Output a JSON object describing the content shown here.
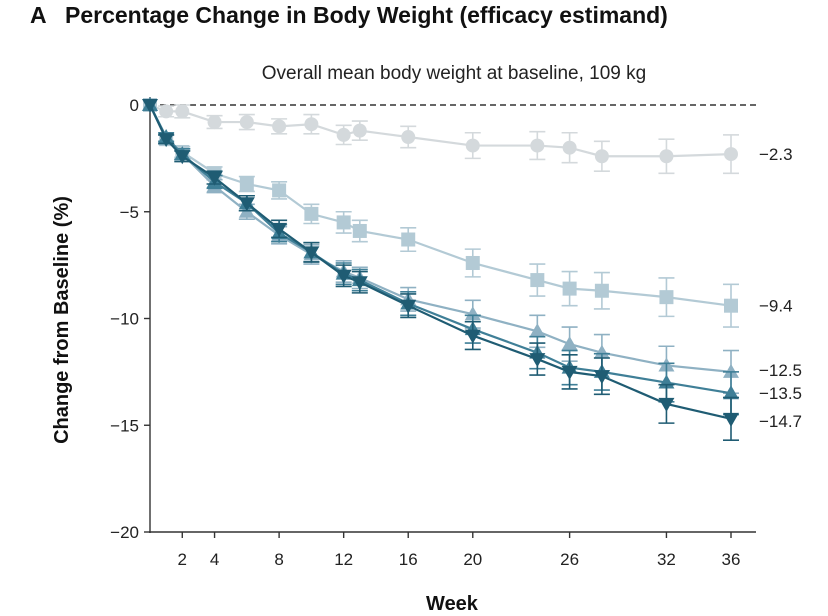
{
  "panel": {
    "letter": "A",
    "title": "Percentage Change in Body Weight (efficacy estimand)"
  },
  "chart_data": {
    "type": "line",
    "subtitle": "Overall mean body weight at baseline, 109 kg",
    "xlabel": "Week",
    "ylabel": "Change from Baseline (%)",
    "xlim": [
      0,
      36
    ],
    "ylim": [
      -20,
      0
    ],
    "x_ticks": [
      2,
      4,
      8,
      12,
      16,
      20,
      26,
      32,
      36
    ],
    "x_tick_labels": [
      "2",
      "4",
      "8",
      "12",
      "16",
      "20",
      "26",
      "32",
      "36"
    ],
    "y_ticks": [
      0,
      -5,
      -10,
      -15,
      -20
    ],
    "y_tick_labels": [
      "0",
      "−5",
      "−10",
      "−15",
      "−20"
    ],
    "reference_line": 0,
    "legend": "none",
    "series": [
      {
        "end_label": "−2.3",
        "marker": "circle",
        "color": "#d4d9dc",
        "points": [
          {
            "x": 0,
            "y": 0,
            "err": 0
          },
          {
            "x": 1,
            "y": -0.3,
            "err": 0.25
          },
          {
            "x": 2,
            "y": -0.3,
            "err": 0.3
          },
          {
            "x": 4,
            "y": -0.8,
            "err": 0.3
          },
          {
            "x": 6,
            "y": -0.8,
            "err": 0.35
          },
          {
            "x": 8,
            "y": -1.0,
            "err": 0.35
          },
          {
            "x": 10,
            "y": -0.9,
            "err": 0.45
          },
          {
            "x": 12,
            "y": -1.4,
            "err": 0.45
          },
          {
            "x": 13,
            "y": -1.2,
            "err": 0.45
          },
          {
            "x": 16,
            "y": -1.5,
            "err": 0.5
          },
          {
            "x": 20,
            "y": -1.9,
            "err": 0.6
          },
          {
            "x": 24,
            "y": -1.9,
            "err": 0.65
          },
          {
            "x": 26,
            "y": -2.0,
            "err": 0.7
          },
          {
            "x": 28,
            "y": -2.4,
            "err": 0.7
          },
          {
            "x": 32,
            "y": -2.4,
            "err": 0.8
          },
          {
            "x": 36,
            "y": -2.3,
            "err": 0.9
          }
        ]
      },
      {
        "end_label": "−9.4",
        "marker": "square",
        "color": "#b3cad5",
        "points": [
          {
            "x": 0,
            "y": 0,
            "err": 0
          },
          {
            "x": 1,
            "y": -1.6,
            "err": 0.2
          },
          {
            "x": 2,
            "y": -2.2,
            "err": 0.25
          },
          {
            "x": 4,
            "y": -3.2,
            "err": 0.3
          },
          {
            "x": 6,
            "y": -3.7,
            "err": 0.35
          },
          {
            "x": 8,
            "y": -4.0,
            "err": 0.4
          },
          {
            "x": 10,
            "y": -5.1,
            "err": 0.45
          },
          {
            "x": 12,
            "y": -5.5,
            "err": 0.5
          },
          {
            "x": 13,
            "y": -5.9,
            "err": 0.5
          },
          {
            "x": 16,
            "y": -6.3,
            "err": 0.55
          },
          {
            "x": 20,
            "y": -7.4,
            "err": 0.65
          },
          {
            "x": 24,
            "y": -8.2,
            "err": 0.75
          },
          {
            "x": 26,
            "y": -8.6,
            "err": 0.8
          },
          {
            "x": 28,
            "y": -8.7,
            "err": 0.85
          },
          {
            "x": 32,
            "y": -9.0,
            "err": 0.9
          },
          {
            "x": 36,
            "y": -9.4,
            "err": 1.0
          }
        ]
      },
      {
        "end_label": "−12.5",
        "marker": "triangle-up",
        "color": "#8fb1c3",
        "points": [
          {
            "x": 0,
            "y": 0,
            "err": 0
          },
          {
            "x": 1,
            "y": -1.6,
            "err": 0.2
          },
          {
            "x": 2,
            "y": -2.3,
            "err": 0.25
          },
          {
            "x": 4,
            "y": -3.8,
            "err": 0.3
          },
          {
            "x": 6,
            "y": -5.0,
            "err": 0.35
          },
          {
            "x": 8,
            "y": -6.1,
            "err": 0.4
          },
          {
            "x": 10,
            "y": -7.0,
            "err": 0.45
          },
          {
            "x": 12,
            "y": -7.8,
            "err": 0.5
          },
          {
            "x": 13,
            "y": -8.1,
            "err": 0.5
          },
          {
            "x": 16,
            "y": -9.1,
            "err": 0.55
          },
          {
            "x": 20,
            "y": -9.8,
            "err": 0.65
          },
          {
            "x": 24,
            "y": -10.6,
            "err": 0.75
          },
          {
            "x": 26,
            "y": -11.2,
            "err": 0.8
          },
          {
            "x": 28,
            "y": -11.6,
            "err": 0.85
          },
          {
            "x": 32,
            "y": -12.2,
            "err": 0.9
          },
          {
            "x": 36,
            "y": -12.5,
            "err": 1.0
          }
        ]
      },
      {
        "end_label": "−13.5",
        "marker": "triangle-up",
        "color": "#3f7f97",
        "points": [
          {
            "x": 0,
            "y": 0,
            "err": 0
          },
          {
            "x": 1,
            "y": -1.5,
            "err": 0.2
          },
          {
            "x": 2,
            "y": -2.3,
            "err": 0.25
          },
          {
            "x": 4,
            "y": -3.6,
            "err": 0.3
          },
          {
            "x": 6,
            "y": -4.6,
            "err": 0.35
          },
          {
            "x": 8,
            "y": -6.0,
            "err": 0.4
          },
          {
            "x": 10,
            "y": -6.9,
            "err": 0.45
          },
          {
            "x": 12,
            "y": -7.9,
            "err": 0.5
          },
          {
            "x": 13,
            "y": -8.2,
            "err": 0.5
          },
          {
            "x": 16,
            "y": -9.3,
            "err": 0.55
          },
          {
            "x": 20,
            "y": -10.5,
            "err": 0.65
          },
          {
            "x": 24,
            "y": -11.6,
            "err": 0.75
          },
          {
            "x": 26,
            "y": -12.3,
            "err": 0.8
          },
          {
            "x": 28,
            "y": -12.5,
            "err": 0.85
          },
          {
            "x": 32,
            "y": -13.0,
            "err": 0.9
          },
          {
            "x": 36,
            "y": -13.5,
            "err": 1.0
          }
        ]
      },
      {
        "end_label": "−14.7",
        "marker": "triangle-down",
        "color": "#1f5c73",
        "points": [
          {
            "x": 0,
            "y": 0,
            "err": 0
          },
          {
            "x": 1,
            "y": -1.6,
            "err": 0.2
          },
          {
            "x": 2,
            "y": -2.4,
            "err": 0.25
          },
          {
            "x": 4,
            "y": -3.4,
            "err": 0.3
          },
          {
            "x": 6,
            "y": -4.6,
            "err": 0.35
          },
          {
            "x": 8,
            "y": -5.8,
            "err": 0.4
          },
          {
            "x": 10,
            "y": -6.9,
            "err": 0.45
          },
          {
            "x": 12,
            "y": -8.0,
            "err": 0.5
          },
          {
            "x": 13,
            "y": -8.3,
            "err": 0.5
          },
          {
            "x": 16,
            "y": -9.4,
            "err": 0.55
          },
          {
            "x": 20,
            "y": -10.8,
            "err": 0.65
          },
          {
            "x": 24,
            "y": -11.9,
            "err": 0.75
          },
          {
            "x": 26,
            "y": -12.5,
            "err": 0.8
          },
          {
            "x": 28,
            "y": -12.7,
            "err": 0.85
          },
          {
            "x": 32,
            "y": -14.0,
            "err": 0.9
          },
          {
            "x": 36,
            "y": -14.7,
            "err": 1.0
          }
        ]
      }
    ]
  }
}
